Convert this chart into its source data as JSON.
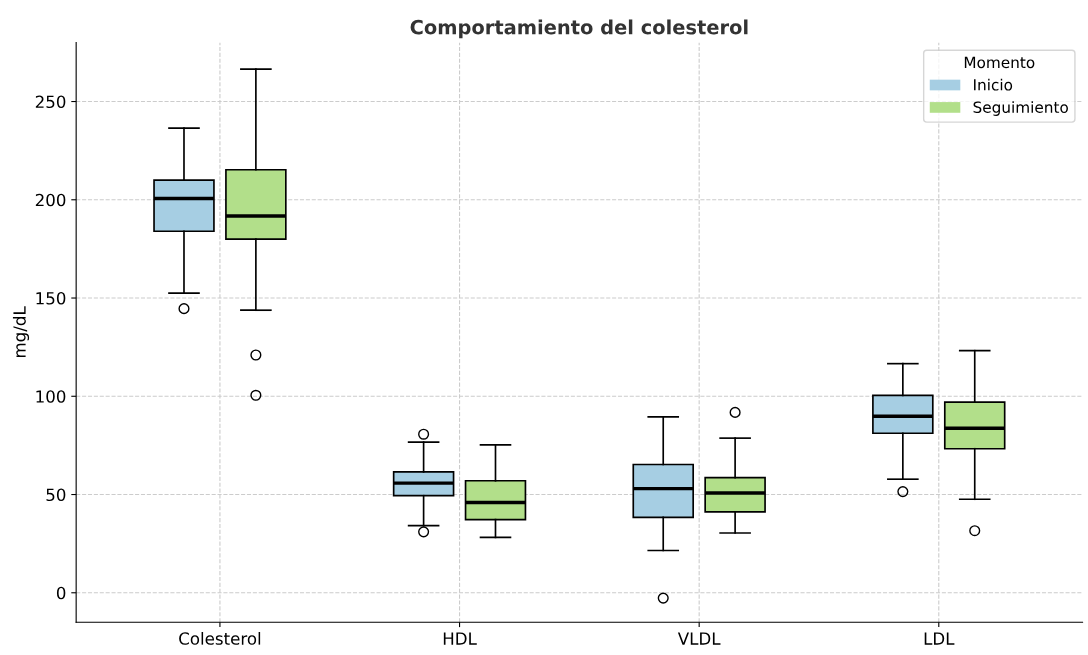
{
  "chart_data": {
    "type": "box",
    "title": "Comportamiento del colesterol",
    "ylabel": "mg/dL",
    "legend_title": "Momento",
    "categories": [
      "Colesterol",
      "HDL",
      "VLDL",
      "LDL"
    ],
    "series": [
      {
        "name": "Inicio",
        "color": "#a6cee3",
        "boxes": [
          {
            "low": 152.5,
            "q1": 184,
            "median": 200.7,
            "q3": 210,
            "high": 236.5,
            "outliers": [
              144.6
            ]
          },
          {
            "low": 34.2,
            "q1": 49.4,
            "median": 55.8,
            "q3": 61.5,
            "high": 76.7,
            "outliers": [
              80.7,
              31
            ]
          },
          {
            "low": 21.5,
            "q1": 38.4,
            "median": 53,
            "q3": 65.3,
            "high": 89.5,
            "outliers": [
              -2.7
            ]
          },
          {
            "low": 57.8,
            "q1": 81.2,
            "median": 89.8,
            "q3": 100.5,
            "high": 116.6,
            "outliers": [
              51.5
            ]
          }
        ]
      },
      {
        "name": "Seguimiento",
        "color": "#b2df8a",
        "boxes": [
          {
            "low": 143.8,
            "q1": 180,
            "median": 191.7,
            "q3": 215.3,
            "high": 266.5,
            "outliers": [
              121,
              100.5
            ]
          },
          {
            "low": 28.2,
            "q1": 37.2,
            "median": 45.9,
            "q3": 57,
            "high": 75.3
          },
          {
            "low": 30.4,
            "q1": 41.2,
            "median": 50.8,
            "q3": 58.6,
            "high": 78.7,
            "outliers": [
              91.8
            ]
          },
          {
            "low": 47.6,
            "q1": 73.3,
            "median": 83.7,
            "q3": 97,
            "high": 123.2,
            "outliers": [
              31.6
            ]
          }
        ]
      }
    ],
    "ylim": [
      -15,
      280
    ],
    "yticks": [
      0,
      50,
      100,
      150,
      200,
      250
    ],
    "grid": true,
    "legend": "top right"
  }
}
